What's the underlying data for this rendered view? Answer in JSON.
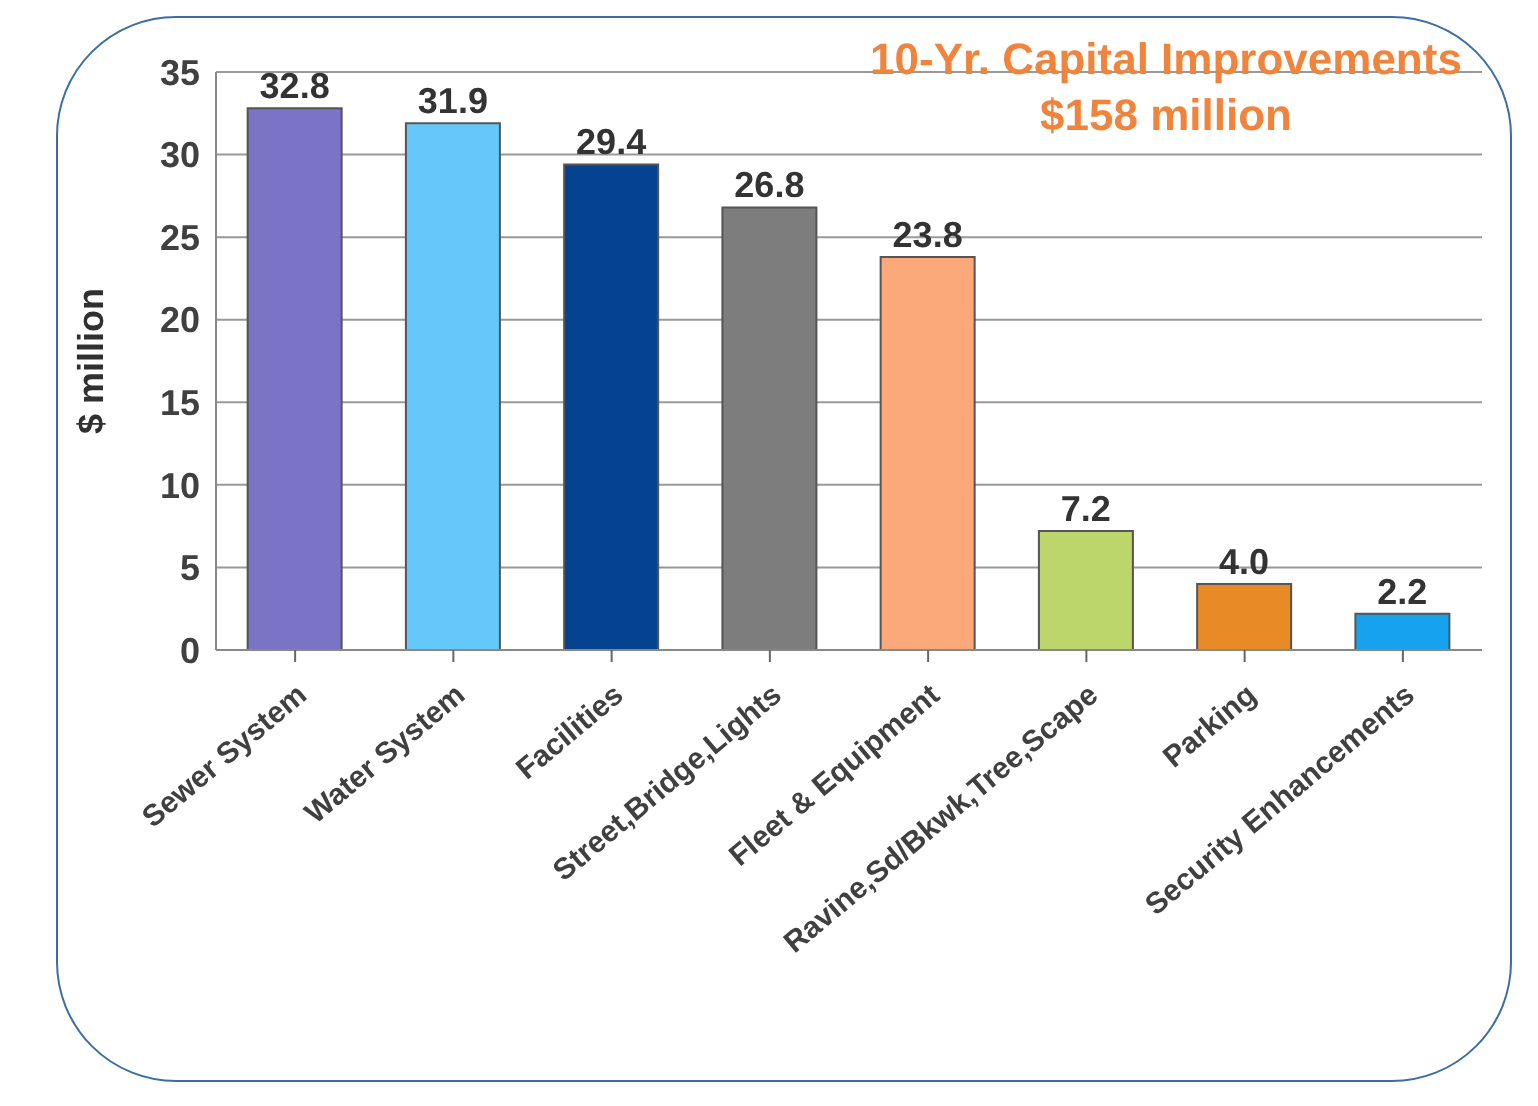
{
  "chart_data": {
    "type": "bar",
    "title": "10-Yr. Capital Improvements",
    "subtitle": "$158 million",
    "ylabel": "$ million",
    "categories": [
      "Sewer System",
      "Water System",
      "Facilities",
      "Street,Bridge,Lights",
      "Fleet & Equipment",
      "Ravine,Sd/Bkwk,Tree,Scape",
      "Parking",
      "Security Enhancements"
    ],
    "values": [
      32.8,
      31.9,
      29.4,
      26.8,
      23.8,
      7.2,
      4.0,
      2.2
    ],
    "colors": [
      "#7b73c6",
      "#66c8fa",
      "#054391",
      "#7d7d7d",
      "#fba87a",
      "#bdd66b",
      "#e88b26",
      "#16a2ee"
    ],
    "value_labels": [
      "32.8",
      "31.9",
      "29.4",
      "26.8",
      "23.8",
      "7.2",
      "4.0",
      "2.2"
    ],
    "ylim": [
      0,
      35
    ],
    "yticks": [
      0,
      5,
      10,
      15,
      20,
      25,
      30,
      35
    ],
    "grid": "y"
  }
}
